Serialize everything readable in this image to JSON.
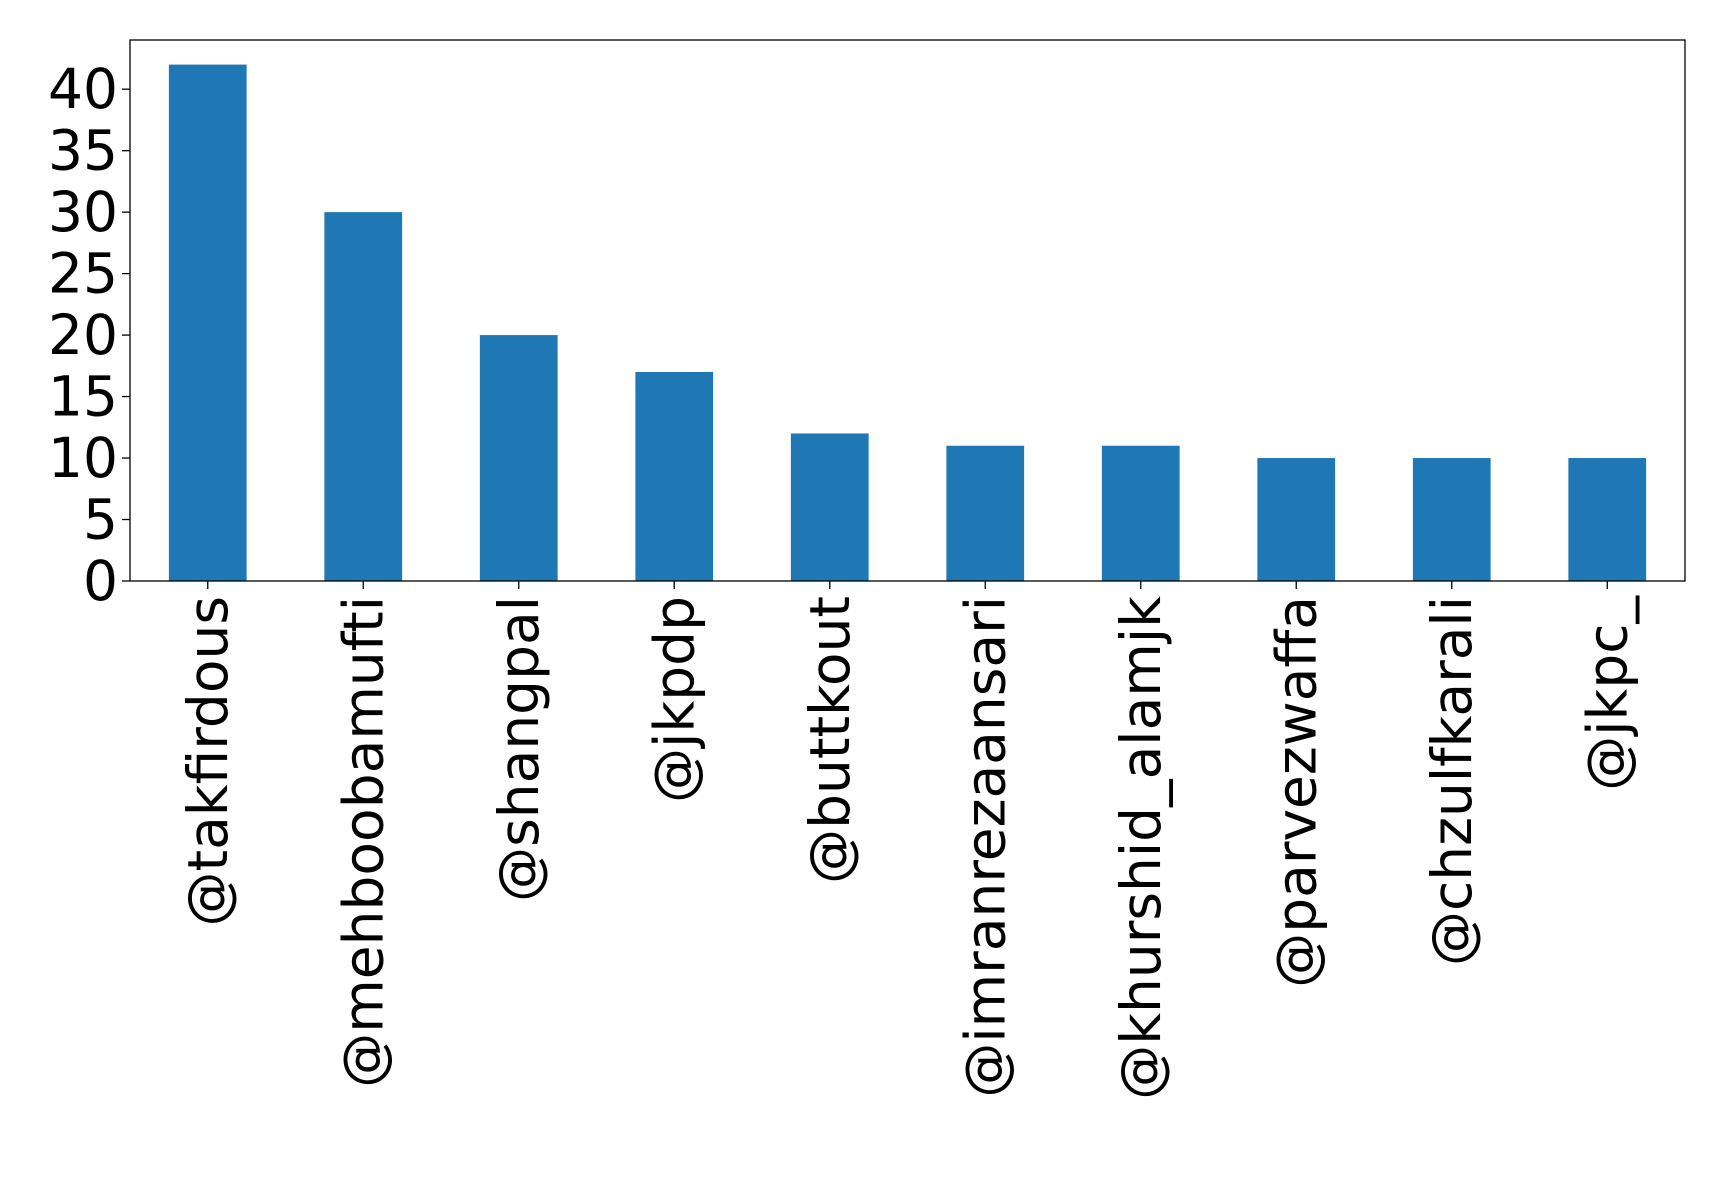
{
  "chart_data": {
    "type": "bar",
    "title": "",
    "xlabel": "",
    "ylabel": "",
    "categories": [
      "@takfirdous",
      "@mehboobamufti",
      "@shangpal",
      "@jkpdp",
      "@buttkout",
      "@imranrezaansari",
      "@khurshid_alamjk",
      "@parvezwaffa",
      "@chzulfkarali",
      "@jkpc_"
    ],
    "values": [
      42,
      30,
      20,
      17,
      12,
      11,
      11,
      10,
      10,
      10
    ],
    "ylim": [
      0,
      44
    ],
    "yticks": [
      0,
      5,
      10,
      15,
      20,
      25,
      30,
      35,
      40
    ],
    "grid": false,
    "legend": "none",
    "colors": {
      "bar": "#1f77b4",
      "axes": "#000000"
    }
  }
}
